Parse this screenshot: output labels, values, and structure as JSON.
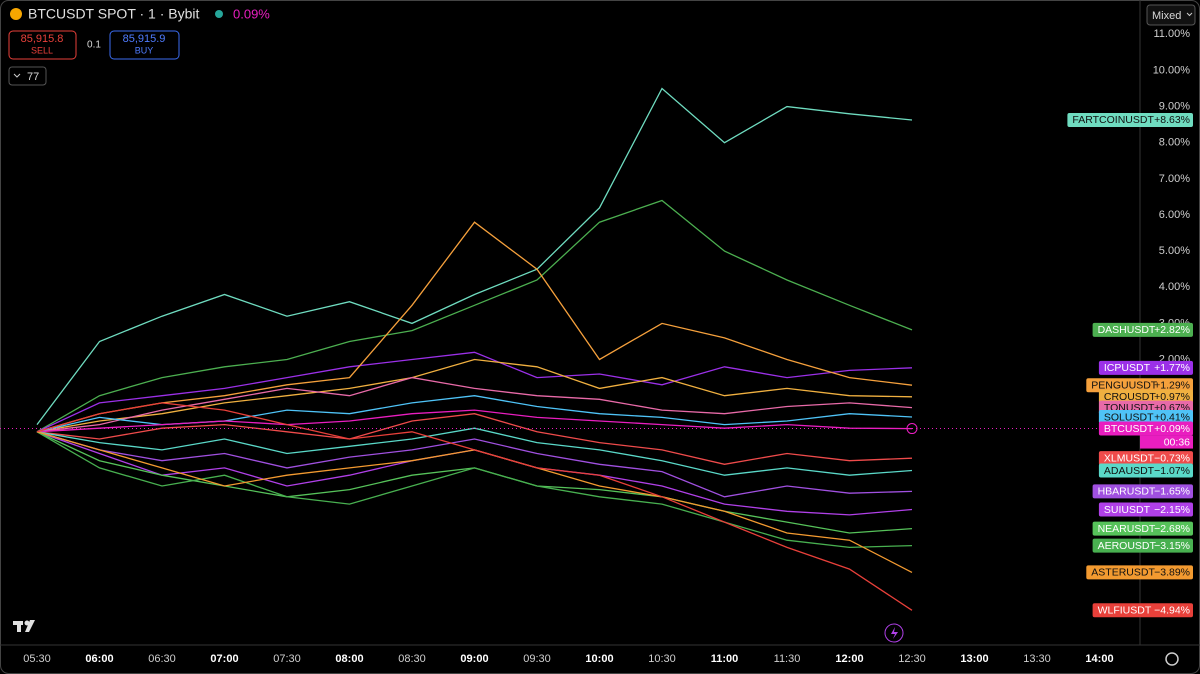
{
  "toolbar": {
    "symbol": "BTCUSDT SPOT · 1 · Bybit",
    "change": "0.09%",
    "sell_price": "85,915.8",
    "sell": "SELL",
    "size": "0.1",
    "buy_price": "85,915.9",
    "buy": "BUY",
    "indicators": "77",
    "scale_mode": "Mixed"
  },
  "chart_data": {
    "type": "line",
    "x": [
      "05:30",
      "06:00",
      "06:30",
      "07:00",
      "07:30",
      "08:00",
      "08:30",
      "09:00",
      "09:30",
      "10:00",
      "10:30",
      "11:00",
      "11:30",
      "12:00",
      "12:30",
      "13:00",
      "13:30",
      "14:00"
    ],
    "ylim": [
      -5.9,
      11.95
    ],
    "yticks": [
      {
        "value": 2,
        "label": "2.00%"
      },
      {
        "value": 3,
        "label": "3.00%"
      },
      {
        "value": 4,
        "label": "4.00%"
      },
      {
        "value": 5,
        "label": "5.00%"
      },
      {
        "value": 6,
        "label": "6.00%"
      },
      {
        "value": 7,
        "label": "7.00%"
      },
      {
        "value": 8,
        "label": "8.00%"
      },
      {
        "value": 9,
        "label": "9.00%"
      },
      {
        "value": 10,
        "label": "10.00%"
      },
      {
        "value": 11,
        "label": "11.00%"
      }
    ],
    "grid": false,
    "countdown": "00:36",
    "series": [
      {
        "name": "FARTCOINUSDT",
        "color": "#6fdcc0",
        "values": [
          0.2,
          2.5,
          3.2,
          3.8,
          3.2,
          3.6,
          3.0,
          3.8,
          4.5,
          6.2,
          9.5,
          8.0,
          9.0,
          8.8,
          8.63,
          null,
          null,
          null
        ],
        "value_labels": [
          null,
          null,
          null,
          null,
          null,
          null,
          null,
          null,
          null,
          null,
          null,
          null,
          null,
          null,
          "+8.63%",
          null,
          null,
          null
        ]
      },
      {
        "name": "DASHUSDT",
        "color": "#4caf50",
        "values": [
          0,
          1.0,
          1.5,
          1.8,
          2.0,
          2.5,
          2.8,
          3.5,
          4.2,
          5.8,
          6.4,
          5.0,
          4.2,
          3.5,
          2.82,
          null,
          null,
          null
        ],
        "value_labels": [
          null,
          null,
          null,
          null,
          null,
          null,
          null,
          null,
          null,
          null,
          null,
          null,
          null,
          null,
          "+2.82%",
          null,
          null,
          null
        ]
      },
      {
        "name": "ICPUSDT",
        "color": "#9b30e8",
        "values": [
          0,
          0.8,
          1.0,
          1.2,
          1.5,
          1.8,
          2.0,
          2.2,
          1.5,
          1.6,
          1.3,
          1.8,
          1.5,
          1.7,
          1.77,
          null,
          null,
          null
        ],
        "value_labels": [
          null,
          null,
          null,
          null,
          null,
          null,
          null,
          null,
          null,
          null,
          null,
          null,
          null,
          null,
          "+1.77%",
          null,
          null,
          null
        ]
      },
      {
        "name": "PENGUUSDT",
        "color": "#f5a03c",
        "values": [
          0,
          0.5,
          0.8,
          1.0,
          1.3,
          1.5,
          3.5,
          5.8,
          4.5,
          2.0,
          3.0,
          2.6,
          2.0,
          1.5,
          1.29,
          null,
          null,
          null
        ],
        "value_labels": [
          null,
          null,
          null,
          null,
          null,
          null,
          null,
          null,
          null,
          null,
          null,
          null,
          null,
          null,
          "+1.29%",
          null,
          null,
          null
        ]
      },
      {
        "name": "CROUSDT",
        "color": "#f0b040",
        "values": [
          0,
          0.3,
          0.5,
          0.8,
          1.0,
          1.2,
          1.5,
          2.0,
          1.8,
          1.2,
          1.5,
          1.0,
          1.2,
          1.0,
          0.97,
          null,
          null,
          null
        ],
        "value_labels": [
          null,
          null,
          null,
          null,
          null,
          null,
          null,
          null,
          null,
          null,
          null,
          null,
          null,
          null,
          "+0.97%",
          null,
          null,
          null
        ]
      },
      {
        "name": "TONUSDT",
        "color": "#e86aa8",
        "values": [
          0,
          0.2,
          0.6,
          0.9,
          1.2,
          1.0,
          1.5,
          1.2,
          1.0,
          0.9,
          0.6,
          0.5,
          0.7,
          0.8,
          0.67,
          null,
          null,
          null
        ],
        "value_labels": [
          null,
          null,
          null,
          null,
          null,
          null,
          null,
          null,
          null,
          null,
          null,
          null,
          null,
          null,
          "+0.67%",
          null,
          null,
          null
        ]
      },
      {
        "name": "SOLUSDT",
        "color": "#4fc3f7",
        "values": [
          0,
          0.4,
          0.2,
          0.3,
          0.6,
          0.5,
          0.8,
          1.0,
          0.7,
          0.5,
          0.4,
          0.2,
          0.3,
          0.5,
          0.41,
          null,
          null,
          null
        ],
        "value_labels": [
          null,
          null,
          null,
          null,
          null,
          null,
          null,
          null,
          null,
          null,
          null,
          null,
          null,
          null,
          "+0.41%",
          null,
          null,
          null
        ]
      },
      {
        "name": "BTCUSDT",
        "color": "#e91ec0",
        "values": [
          0,
          0.1,
          0.2,
          0.3,
          0.2,
          0.3,
          0.5,
          0.6,
          0.4,
          0.3,
          0.2,
          0.1,
          0.2,
          0.1,
          0.09,
          null,
          null,
          null
        ],
        "value_labels": [
          null,
          null,
          null,
          null,
          null,
          null,
          null,
          null,
          null,
          null,
          null,
          null,
          null,
          null,
          "+0.09%",
          null,
          null,
          null
        ]
      },
      {
        "name": "XLMUSDT",
        "color": "#ef4b4b",
        "values": [
          0,
          -0.2,
          0.1,
          0.2,
          0,
          -0.2,
          0.3,
          0.5,
          0,
          -0.3,
          -0.5,
          -0.9,
          -0.6,
          -0.8,
          -0.73,
          null,
          null,
          null
        ],
        "value_labels": [
          null,
          null,
          null,
          null,
          null,
          null,
          null,
          null,
          null,
          null,
          null,
          null,
          null,
          null,
          "−0.73%",
          null,
          null,
          null
        ]
      },
      {
        "name": "ADAUSDT",
        "color": "#5ad8c8",
        "values": [
          0,
          -0.3,
          -0.5,
          -0.2,
          -0.6,
          -0.4,
          -0.2,
          0.1,
          -0.3,
          -0.5,
          -0.8,
          -1.2,
          -1.0,
          -1.2,
          -1.07,
          null,
          null,
          null
        ],
        "value_labels": [
          null,
          null,
          null,
          null,
          null,
          null,
          null,
          null,
          null,
          null,
          null,
          null,
          null,
          null,
          "−1.07%",
          null,
          null,
          null
        ]
      },
      {
        "name": "HBARUSDT",
        "color": "#a050e0",
        "values": [
          0,
          -0.5,
          -0.8,
          -0.6,
          -1.0,
          -0.7,
          -0.5,
          -0.2,
          -0.6,
          -0.9,
          -1.1,
          -1.8,
          -1.5,
          -1.7,
          -1.65,
          null,
          null,
          null
        ],
        "value_labels": [
          null,
          null,
          null,
          null,
          null,
          null,
          null,
          null,
          null,
          null,
          null,
          null,
          null,
          null,
          "−1.65%",
          null,
          null,
          null
        ]
      },
      {
        "name": "SUIUSDT",
        "color": "#b040e8",
        "values": [
          0,
          -0.6,
          -1.2,
          -1.0,
          -1.5,
          -1.2,
          -0.8,
          -0.5,
          -1.0,
          -1.2,
          -1.5,
          -2.0,
          -2.2,
          -2.3,
          -2.15,
          null,
          null,
          null
        ],
        "value_labels": [
          null,
          null,
          null,
          null,
          null,
          null,
          null,
          null,
          null,
          null,
          null,
          null,
          null,
          null,
          "−2.15%",
          null,
          null,
          null
        ]
      },
      {
        "name": "NEARUSDT",
        "color": "#56c25a",
        "values": [
          0,
          -0.8,
          -1.2,
          -1.5,
          -1.8,
          -1.6,
          -1.2,
          -1.0,
          -1.5,
          -1.6,
          -1.8,
          -2.2,
          -2.5,
          -2.8,
          -2.68,
          null,
          null,
          null
        ],
        "value_labels": [
          null,
          null,
          null,
          null,
          null,
          null,
          null,
          null,
          null,
          null,
          null,
          null,
          null,
          null,
          "−2.68%",
          null,
          null,
          null
        ]
      },
      {
        "name": "AEROUSDT",
        "color": "#48b050",
        "values": [
          0,
          -1.0,
          -1.5,
          -1.2,
          -1.8,
          -2.0,
          -1.5,
          -1.0,
          -1.5,
          -1.8,
          -2.0,
          -2.5,
          -3.0,
          -3.2,
          -3.15,
          null,
          null,
          null
        ],
        "value_labels": [
          null,
          null,
          null,
          null,
          null,
          null,
          null,
          null,
          null,
          null,
          null,
          null,
          null,
          null,
          "−3.15%",
          null,
          null,
          null
        ]
      },
      {
        "name": "ASTERUSDT",
        "color": "#f39a30",
        "values": [
          0,
          -0.5,
          -1.0,
          -1.5,
          -1.2,
          -1.0,
          -0.8,
          -0.5,
          -1.0,
          -1.5,
          -1.8,
          -2.2,
          -2.8,
          -3.0,
          -3.89,
          null,
          null,
          null
        ],
        "value_labels": [
          null,
          null,
          null,
          null,
          null,
          null,
          null,
          null,
          null,
          null,
          null,
          null,
          null,
          null,
          "−3.89%",
          null,
          null,
          null
        ]
      },
      {
        "name": "WLFIUSDT",
        "color": "#e8403a",
        "values": [
          0,
          0.5,
          0.8,
          0.6,
          0.2,
          -0.2,
          0.0,
          -0.5,
          -1.0,
          -1.2,
          -1.8,
          -2.5,
          -3.2,
          -3.8,
          -4.94,
          null,
          null,
          null
        ],
        "value_labels": [
          null,
          null,
          null,
          null,
          null,
          null,
          null,
          null,
          null,
          null,
          null,
          null,
          null,
          null,
          "−4.94%",
          null,
          null,
          null
        ]
      }
    ]
  }
}
